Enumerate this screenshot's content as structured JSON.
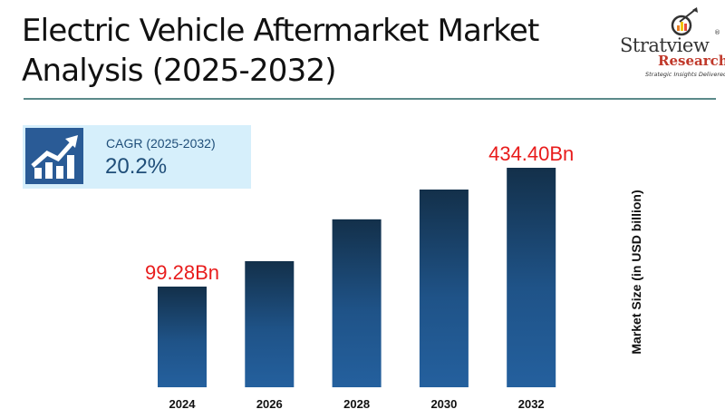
{
  "header": {
    "title_line1": "Electric Vehicle Aftermarket Market",
    "title_line2": "Analysis (2025-2032)"
  },
  "logo": {
    "brand": "Stratview",
    "registered": "®",
    "sub": "Research",
    "tagline": "Strategic Insights Delivered"
  },
  "cagr": {
    "icon": "growth-chart-icon",
    "label": "CAGR (2025-2032)",
    "value": "20.2%"
  },
  "colors": {
    "bar_top": "#13304a",
    "bar_bottom": "#24609e",
    "label_red": "#e81c1c",
    "accent": "#2a5b96"
  },
  "chart_data": {
    "type": "bar",
    "categories": [
      "2024",
      "2026",
      "2028",
      "2030",
      "2032"
    ],
    "values": [
      99.28,
      171,
      289,
      373,
      434.4
    ],
    "data_labels": [
      "99.28Bn",
      "",
      "",
      "",
      "434.40Bn"
    ],
    "ylabel": "Market Size (in USD billion)",
    "grid": false
  }
}
